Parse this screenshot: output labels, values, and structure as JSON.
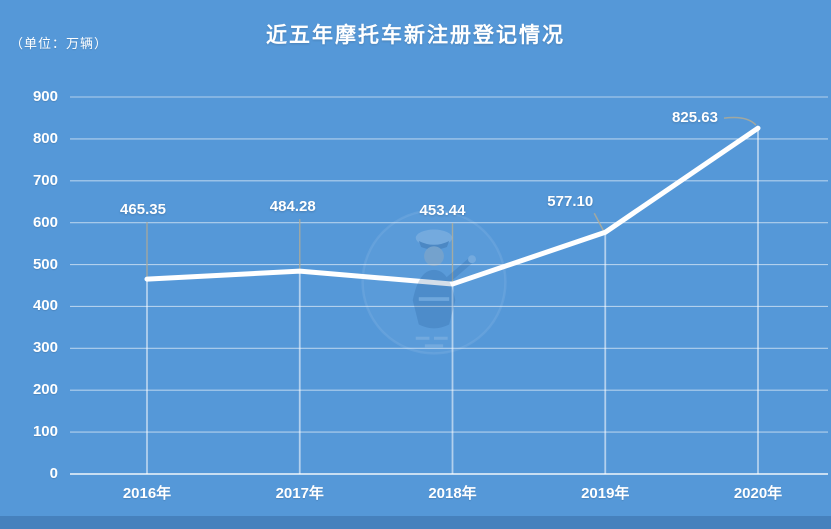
{
  "header": {
    "unit_label": "（单位：万辆）",
    "title": "近五年摩托车新注册登记情况"
  },
  "chart_data": {
    "type": "line",
    "title": "近五年摩托车新注册登记情况",
    "unit": "万辆",
    "categories": [
      "2016年",
      "2017年",
      "2018年",
      "2019年",
      "2020年"
    ],
    "values": [
      465.35,
      484.28,
      453.44,
      577.1,
      825.63
    ],
    "labels": [
      "465.35",
      "484.28",
      "453.44",
      "577.10",
      "825.63"
    ],
    "yticks": [
      0,
      100,
      200,
      300,
      400,
      500,
      600,
      700,
      800,
      900
    ],
    "ylim": [
      0,
      900
    ],
    "grid": true,
    "legend_position": "none",
    "colors": {
      "background": "#5598D8",
      "line": "#FFFFFF",
      "grid": "rgba(255,255,255,0.55)",
      "baseline": "rgba(255,255,255,0.9)",
      "dropline": "rgba(255,255,255,0.55)",
      "leader": "rgba(175,170,150,0.85)",
      "text": "#FFFFFF"
    }
  }
}
